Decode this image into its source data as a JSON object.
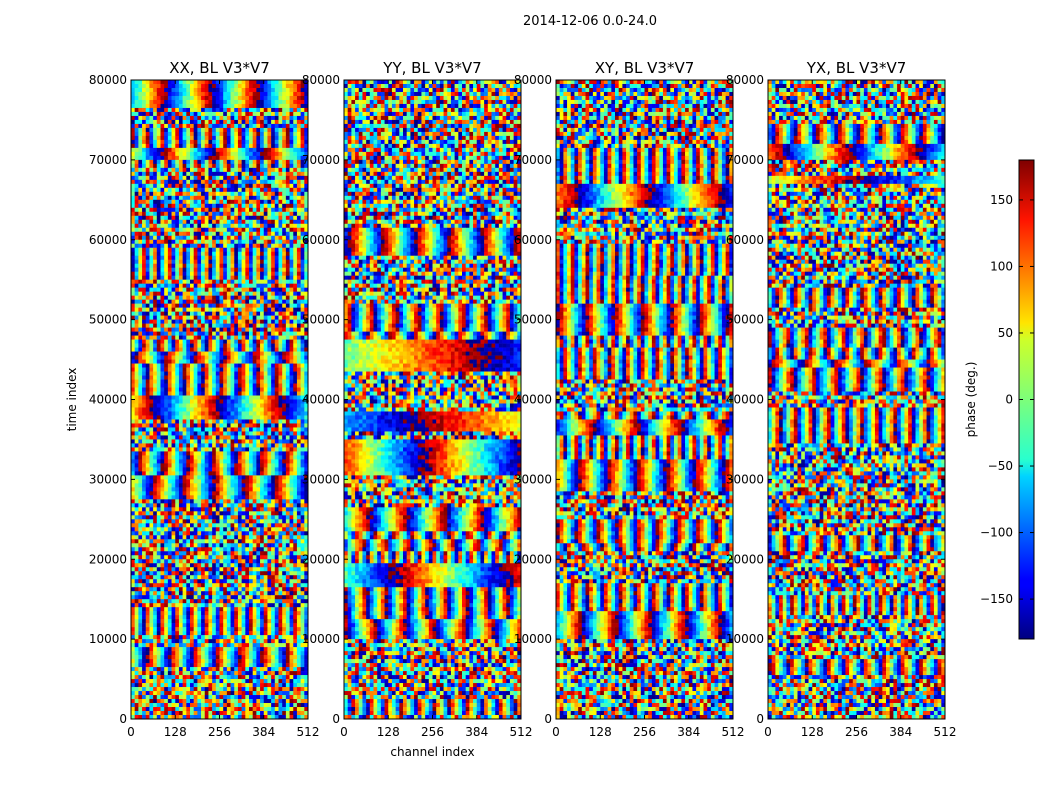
{
  "figure": {
    "suptitle": "2014-12-06 0.0-24.0"
  },
  "chart_data": {
    "type": "heatmap",
    "xlabel": "channel index",
    "ylabel": "time index",
    "x_range": [
      0,
      512
    ],
    "y_range": [
      0,
      80000
    ],
    "x_ticks": [
      "0",
      "128",
      "256",
      "384",
      "512"
    ],
    "y_ticks": [
      "0",
      "10000",
      "20000",
      "30000",
      "40000",
      "50000",
      "60000",
      "70000",
      "80000"
    ],
    "panels": [
      {
        "title": "XX, BL V3*V7"
      },
      {
        "title": "YY, BL V3*V7"
      },
      {
        "title": "XY, BL V3*V7"
      },
      {
        "title": "YX, BL V3*V7"
      }
    ],
    "colorbar": {
      "label": "phase (deg.)",
      "range": [
        -180,
        180
      ],
      "ticks": [
        "150",
        "100",
        "50",
        "0",
        "−50",
        "−100",
        "−150"
      ],
      "tick_values": [
        150,
        100,
        50,
        0,
        -50,
        -100,
        -150
      ],
      "colormap": "jet"
    }
  }
}
